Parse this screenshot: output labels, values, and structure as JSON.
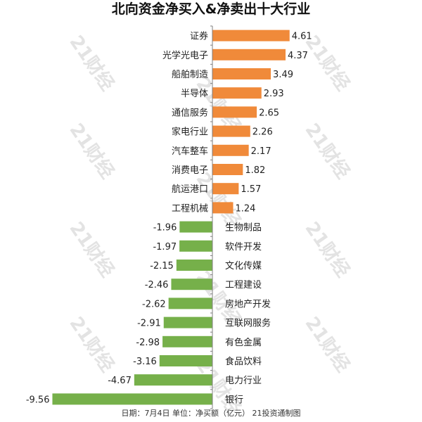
{
  "title": "北向资金净买入&净卖出十大行业",
  "footer": "日期：7月4日 单位：净买额（亿元） 21投资通制图",
  "watermark_text": "21财经",
  "colors": {
    "positive": "#f08a3a",
    "negative": "#76b04a",
    "axis": "#7f7f7f",
    "text": "#222222"
  },
  "chart_data": {
    "type": "bar",
    "orientation": "horizontal",
    "title": "北向资金净买入&净卖出十大行业",
    "xlabel": "",
    "ylabel": "",
    "grid": false,
    "legend": "none",
    "xlim": [
      -9.56,
      4.61
    ],
    "categories": [
      "证券",
      "光学光电子",
      "船舶制造",
      "半导体",
      "通信服务",
      "家电行业",
      "汽车整车",
      "消费电子",
      "航运港口",
      "工程机械",
      "生物制品",
      "软件开发",
      "文化传媒",
      "工程建设",
      "房地产开发",
      "互联网服务",
      "有色金属",
      "食品饮料",
      "电力行业",
      "银行"
    ],
    "values": [
      4.61,
      4.37,
      3.49,
      2.93,
      2.65,
      2.26,
      2.17,
      1.82,
      1.57,
      1.24,
      -1.96,
      -1.97,
      -2.15,
      -2.46,
      -2.62,
      -2.91,
      -2.98,
      -3.16,
      -4.67,
      -9.56
    ],
    "value_labels": [
      "4.61",
      "4.37",
      "3.49",
      "2.93",
      "2.65",
      "2.26",
      "2.17",
      "1.82",
      "1.57",
      "1.24",
      "-1.96",
      "-1.97",
      "-2.15",
      "-2.46",
      "-2.62",
      "-2.91",
      "-2.98",
      "-3.16",
      "-4.67",
      "-9.56"
    ]
  }
}
